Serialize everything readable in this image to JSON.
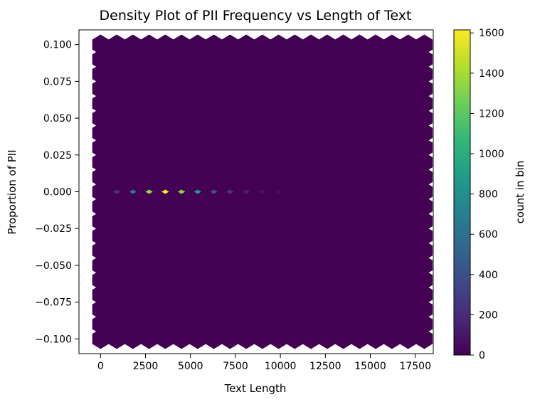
{
  "chart_data": {
    "type": "hexbin",
    "title": "Density Plot of PII Frequency vs Length of Text",
    "xlabel": "Text Length",
    "ylabel": "Proportion of PII",
    "xlim": [
      -1200,
      18500
    ],
    "ylim": [
      -0.11,
      0.11
    ],
    "x_ticks": [
      0,
      2500,
      5000,
      7500,
      10000,
      12500,
      15000,
      17500
    ],
    "x_tick_labels": [
      "0",
      "2500",
      "5000",
      "7500",
      "10000",
      "12500",
      "15000",
      "17500"
    ],
    "y_ticks": [
      0.1,
      0.075,
      0.05,
      0.025,
      0.0,
      -0.025,
      -0.05,
      -0.075,
      -0.1
    ],
    "y_tick_labels": [
      "0.100",
      "0.075",
      "0.050",
      "0.025",
      "0.000",
      "−0.025",
      "−0.050",
      "−0.075",
      "−0.100"
    ],
    "colormap": "viridis",
    "colorbar": {
      "label": "count in bin",
      "range": [
        0,
        1615
      ],
      "ticks": [
        0,
        200,
        400,
        600,
        800,
        1000,
        1200,
        1400,
        1600
      ],
      "tick_labels": [
        "0",
        "200",
        "400",
        "600",
        "800",
        "1000",
        "1200",
        "1400",
        "1600"
      ]
    },
    "hexbin": {
      "x_range": [
        0,
        18000
      ],
      "y_range": [
        -0.1,
        0.1
      ],
      "gridsize_x": 20,
      "gridsize_y": 20
    },
    "nonzero_bins": [
      {
        "x": 900,
        "y": 0.0,
        "count": 230
      },
      {
        "x": 1800,
        "y": 0.0,
        "count": 660
      },
      {
        "x": 2700,
        "y": 0.0,
        "count": 1350
      },
      {
        "x": 3600,
        "y": 0.0,
        "count": 1615
      },
      {
        "x": 4500,
        "y": 0.0,
        "count": 1330
      },
      {
        "x": 5400,
        "y": 0.0,
        "count": 850
      },
      {
        "x": 6300,
        "y": 0.0,
        "count": 400
      },
      {
        "x": 7200,
        "y": 0.0,
        "count": 250
      },
      {
        "x": 8100,
        "y": 0.0,
        "count": 140
      },
      {
        "x": 9000,
        "y": 0.0,
        "count": 80
      },
      {
        "x": 9900,
        "y": 0.0,
        "count": 45
      },
      {
        "x": 10800,
        "y": 0.0,
        "count": 20
      }
    ]
  }
}
